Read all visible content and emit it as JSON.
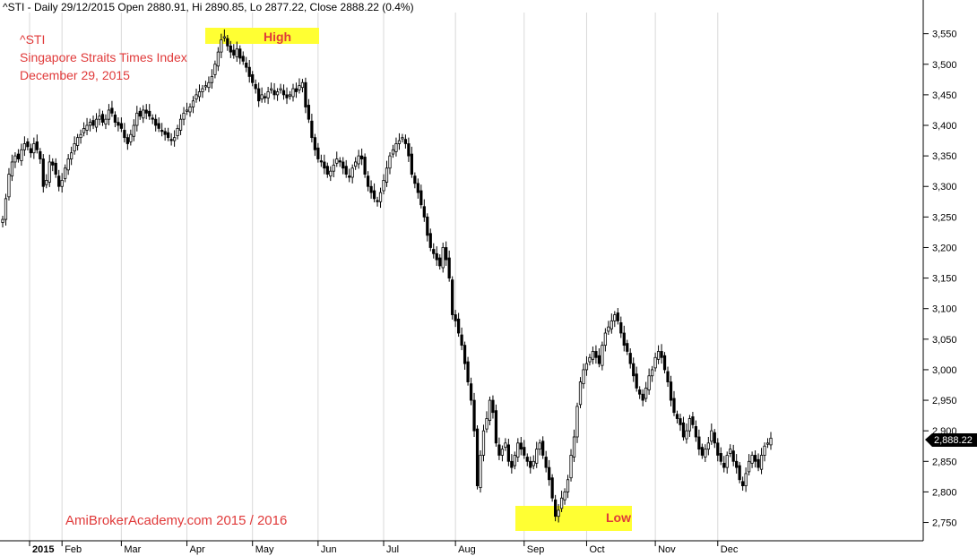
{
  "header": {
    "text": "^STI - Daily 29/12/2015 Open 2880.91, Hi 2890.85, Lo 2877.22, Close 2888.22 (0.4%)"
  },
  "annotations": {
    "title_lines": [
      "^STI",
      "Singapore Straits Times Index",
      "December 29, 2015"
    ],
    "high_label": "High",
    "low_label": "Low",
    "watermark": "AmiBrokerAcademy.com  2015 /  2016",
    "last_price": "2,888.22"
  },
  "colors": {
    "candle": "#000000",
    "annotation_text": "#e03a3a",
    "highlight": "#ffff33",
    "grid": "#d0d0d0"
  },
  "chart_data": {
    "type": "candlestick",
    "title": "^STI",
    "y_axis": {
      "position": "right",
      "ylim": [
        2720,
        3570
      ],
      "ticks": [
        2750,
        2800,
        2850,
        2900,
        2950,
        3000,
        3050,
        3100,
        3150,
        3200,
        3250,
        3300,
        3350,
        3400,
        3450,
        3500,
        3550
      ],
      "tick_labels": [
        "2,750",
        "2,800",
        "2,850",
        "2,900",
        "2,950",
        "3,000",
        "3,050",
        "3,100",
        "3,150",
        "3,200",
        "3,250",
        "3,300",
        "3,350",
        "3,400",
        "3,450",
        "3,500",
        "3,550"
      ]
    },
    "x_axis": {
      "months": [
        "2015",
        "Feb",
        "Mar",
        "Apr",
        "May",
        "Jun",
        "Jul",
        "Aug",
        "Sep",
        "Oct",
        "Nov",
        "Dec"
      ],
      "month_start_index": [
        0,
        19,
        38,
        59,
        80,
        101,
        122,
        145,
        167,
        187,
        209,
        229
      ]
    },
    "grid": "vertical month lines",
    "close_series": [
      3246,
      3280,
      3320,
      3340,
      3350,
      3345,
      3360,
      3370,
      3365,
      3355,
      3370,
      3360,
      3345,
      3300,
      3310,
      3340,
      3335,
      3320,
      3300,
      3310,
      3330,
      3345,
      3355,
      3370,
      3380,
      3385,
      3395,
      3400,
      3405,
      3400,
      3410,
      3415,
      3405,
      3410,
      3425,
      3420,
      3405,
      3400,
      3395,
      3380,
      3370,
      3385,
      3400,
      3420,
      3415,
      3425,
      3420,
      3415,
      3410,
      3400,
      3395,
      3390,
      3385,
      3380,
      3375,
      3380,
      3395,
      3410,
      3420,
      3425,
      3430,
      3440,
      3450,
      3455,
      3460,
      3465,
      3470,
      3480,
      3500,
      3520,
      3540,
      3545,
      3530,
      3520,
      3515,
      3525,
      3510,
      3505,
      3495,
      3480,
      3470,
      3460,
      3440,
      3450,
      3445,
      3455,
      3460,
      3450,
      3455,
      3460,
      3450,
      3445,
      3450,
      3460,
      3455,
      3465,
      3470,
      3430,
      3410,
      3380,
      3360,
      3345,
      3340,
      3330,
      3320,
      3325,
      3335,
      3345,
      3340,
      3330,
      3320,
      3315,
      3330,
      3340,
      3350,
      3345,
      3320,
      3300,
      3290,
      3280,
      3275,
      3290,
      3310,
      3330,
      3350,
      3360,
      3370,
      3375,
      3380,
      3370,
      3350,
      3320,
      3305,
      3290,
      3270,
      3250,
      3220,
      3200,
      3190,
      3180,
      3170,
      3200,
      3180,
      3150,
      3090,
      3080,
      3060,
      3040,
      3010,
      2980,
      2950,
      2900,
      2810,
      2860,
      2900,
      2920,
      2950,
      2930,
      2880,
      2860,
      2870,
      2880,
      2850,
      2840,
      2860,
      2880,
      2870,
      2860,
      2850,
      2840,
      2850,
      2870,
      2880,
      2860,
      2840,
      2820,
      2790,
      2760,
      2770,
      2790,
      2800,
      2820,
      2860,
      2890,
      2940,
      2980,
      3000,
      3010,
      3020,
      3030,
      3020,
      3010,
      3040,
      3060,
      3070,
      3080,
      3090,
      3080,
      3060,
      3040,
      3030,
      3010,
      2990,
      2970,
      2960,
      2950,
      2970,
      2990,
      3000,
      3020,
      3030,
      3020,
      3000,
      2980,
      2950,
      2930,
      2920,
      2910,
      2890,
      2900,
      2920,
      2910,
      2890,
      2870,
      2860,
      2870,
      2880,
      2900,
      2880,
      2860,
      2850,
      2840,
      2860,
      2870,
      2850,
      2840,
      2820,
      2810,
      2830,
      2850,
      2860,
      2850,
      2840,
      2860,
      2875,
      2880,
      2888
    ],
    "high": {
      "value": 3550,
      "month": "Apr"
    },
    "low": {
      "value": 2740,
      "month": "Sep"
    },
    "last_close": 2888.22
  }
}
